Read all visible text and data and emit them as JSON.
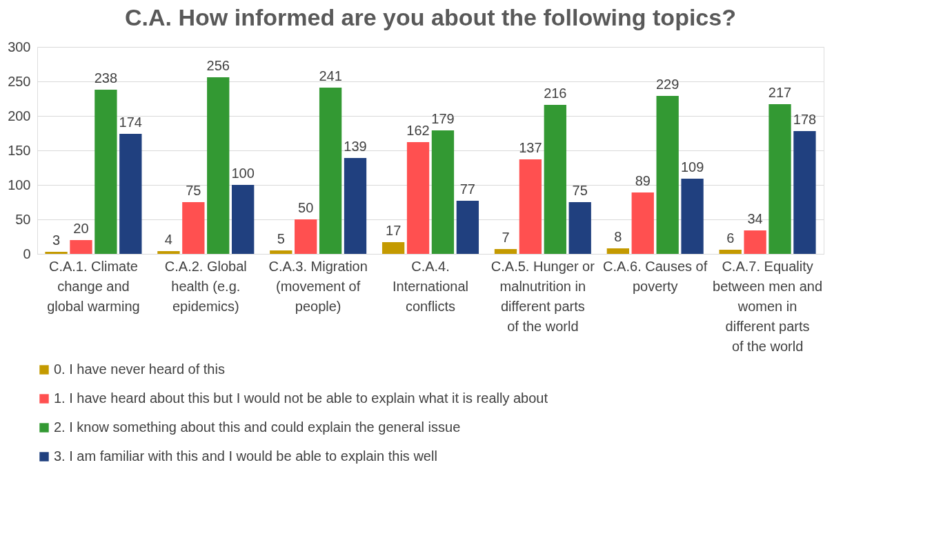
{
  "chart_data": {
    "type": "bar",
    "title": "C.A. How informed are you about the following topics?",
    "categories": [
      "C.A.1. Climate change and global warming",
      "C.A.2. Global health (e.g. epidemics)",
      "C.A.3. Migration (movement of people)",
      "C.A.4. International conflicts",
      "C.A.5. Hunger or malnutrition in different parts of the world",
      "C.A.6. Causes of poverty",
      "C.A.7. Equality between men and women in different parts of the world"
    ],
    "series": [
      {
        "name": "0. I have never heard of this",
        "color": "#c49a00",
        "values": [
          3,
          4,
          5,
          17,
          7,
          8,
          6
        ]
      },
      {
        "name": "1. I have heard about this but I would not be able to explain what it is really about",
        "color": "#ff5050",
        "values": [
          20,
          75,
          50,
          162,
          137,
          89,
          34
        ]
      },
      {
        "name": "2. I know something about this and could explain the general issue",
        "color": "#339933",
        "values": [
          238,
          256,
          241,
          179,
          216,
          229,
          217
        ]
      },
      {
        "name": "3. I am familiar with this and I would be able to explain this well",
        "color": "#20407f",
        "values": [
          174,
          100,
          139,
          77,
          75,
          109,
          178
        ]
      }
    ],
    "ylim": [
      0,
      300
    ],
    "yticks": [
      0,
      50,
      100,
      150,
      200,
      250,
      300
    ],
    "grid": "y",
    "legend": "bottom",
    "data_labels": true
  }
}
